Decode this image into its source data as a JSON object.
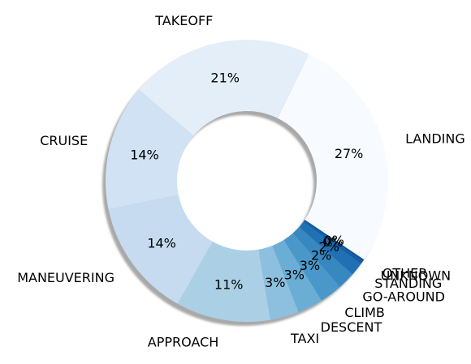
{
  "chart_data": {
    "type": "pie",
    "donut": true,
    "shadow": true,
    "start_angle_deg": -34,
    "direction": "counterclockwise",
    "title": "",
    "categories": [
      "LANDING",
      "TAKEOFF",
      "CRUISE",
      "MANEUVERING",
      "APPROACH",
      "TAXI",
      "DESCENT",
      "CLIMB",
      "GO-AROUND",
      "STANDING",
      "UNKNOWN",
      "OTHER"
    ],
    "values": [
      27.2,
      21.1,
      14.4,
      13.6,
      10.8,
      3.3,
      2.9,
      2.6,
      2.0,
      1.5,
      0.4,
      0.2
    ],
    "value_labels": [
      "27%",
      "21%",
      "14%",
      "14%",
      "11%",
      "3%",
      "3%",
      "3%",
      "2%",
      "2%",
      "0%",
      "0%"
    ],
    "colors": [
      "#f7fbff",
      "#e3eef9",
      "#d0e2f3",
      "#c6dbef",
      "#abd0e6",
      "#8dc0de",
      "#6aaed6",
      "#4a98c9",
      "#3787c0",
      "#2070b4",
      "#1460a8",
      "#08519c"
    ]
  }
}
